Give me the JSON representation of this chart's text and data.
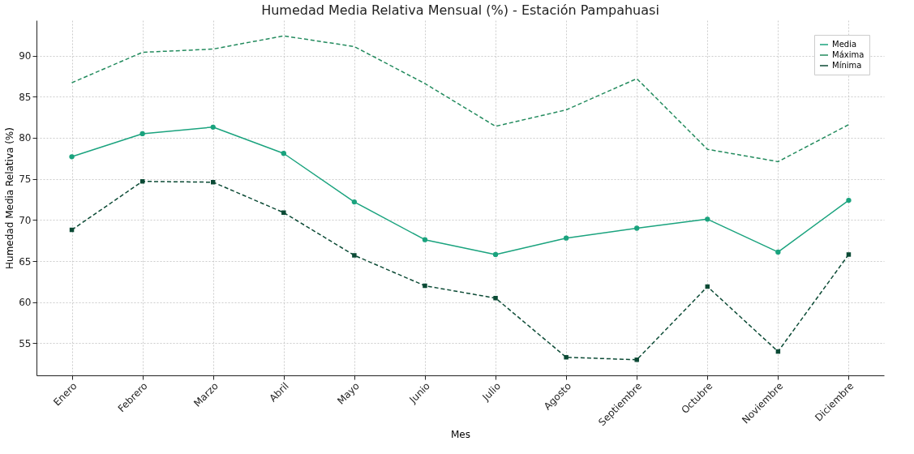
{
  "chart_data": {
    "type": "line",
    "title": "Humedad Media Relativa Mensual (%) - Estación Pampahuasi",
    "xlabel": "Mes",
    "ylabel": "Humedad Media Relativa (%)",
    "categories": [
      "Enero",
      "Febrero",
      "Marzo",
      "Abril",
      "Mayo",
      "Junio",
      "Julio",
      "Agosto",
      "Septiembre",
      "Octubre",
      "Noviembre",
      "Diciembre"
    ],
    "series": [
      {
        "name": "Media",
        "color": "#1aa37e",
        "marker": "circle",
        "line_style": "solid",
        "values": [
          77.7,
          80.5,
          81.3,
          78.1,
          72.2,
          67.6,
          65.8,
          67.8,
          69.0,
          70.1,
          66.1,
          72.4
        ]
      },
      {
        "name": "Máxima",
        "color": "#238b5e",
        "marker": "none",
        "line_style": "dashed",
        "values": [
          86.7,
          90.4,
          90.8,
          92.4,
          91.1,
          86.6,
          81.4,
          83.4,
          87.2,
          78.6,
          77.1,
          81.6
        ]
      },
      {
        "name": "Mínima",
        "color": "#0b4a35",
        "marker": "square",
        "line_style": "dashed",
        "values": [
          68.8,
          74.7,
          74.6,
          70.9,
          65.7,
          62.0,
          60.5,
          53.3,
          53.0,
          61.9,
          54.0,
          65.8
        ]
      }
    ],
    "ylim": [
      51.1,
      94.3
    ],
    "yticks": [
      55,
      60,
      65,
      70,
      75,
      80,
      85,
      90
    ],
    "grid": true,
    "legend": "top right"
  }
}
